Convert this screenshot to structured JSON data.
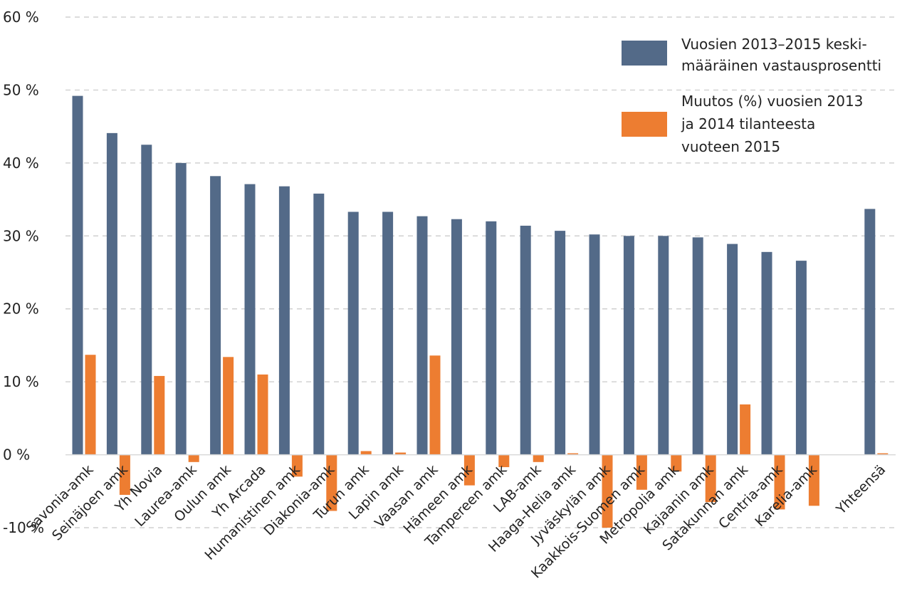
{
  "chart_data": {
    "type": "bar",
    "title": "",
    "xlabel": "",
    "ylabel": "",
    "ylim": [
      -10,
      60
    ],
    "yticks": [
      -10,
      0,
      10,
      20,
      30,
      40,
      50,
      60
    ],
    "ytick_labels": [
      "-10 %",
      "0 %",
      "10 %",
      "20 %",
      "30 %",
      "40 %",
      "50 %",
      "60 %"
    ],
    "grid": true,
    "legend_position": "top-right",
    "categories": [
      "Savonia-amk",
      "Seinäjoen amk",
      "Yh Novia",
      "Laurea-amk",
      "Oulun amk",
      "Yh Arcada",
      "Humanistinen amk",
      "Diakonia-amk",
      "Turun amk",
      "Lapin amk",
      "Vaasan amk",
      "Hämeen amk",
      "Tampereen amk",
      "LAB-amk",
      "Haaga-Helia amk",
      "Jyväskylän amk",
      "Kaakkois-Suomen amk",
      "Metropolia amk",
      "Kajaanin amk",
      "Satakunnan amk",
      "Centria-amk",
      "Karelia-amk",
      "Yhteensä"
    ],
    "series": [
      {
        "name_lines": [
          "Vuosien 2013–2015 keski-",
          "määräinen vastausprosentti"
        ],
        "color": "#536a88",
        "values": [
          49.2,
          44.1,
          42.5,
          40.0,
          38.2,
          37.1,
          36.8,
          35.8,
          33.3,
          33.3,
          32.7,
          32.3,
          32.0,
          31.4,
          30.7,
          30.2,
          30.0,
          30.0,
          29.8,
          28.9,
          27.8,
          26.6,
          33.7
        ]
      },
      {
        "name_lines": [
          "Muutos (%) vuosien 2013",
          "ja 2014 tilanteesta",
          "vuoteen 2015"
        ],
        "color": "#ed7d31",
        "values": [
          13.7,
          -5.5,
          10.8,
          -1.0,
          13.4,
          11.0,
          -3.0,
          -7.7,
          0.5,
          0.3,
          13.6,
          -4.2,
          -1.7,
          -1.0,
          0.2,
          -10.0,
          -4.8,
          -2.3,
          -6.5,
          6.9,
          -7.5,
          -7.0,
          0.2
        ]
      }
    ]
  }
}
